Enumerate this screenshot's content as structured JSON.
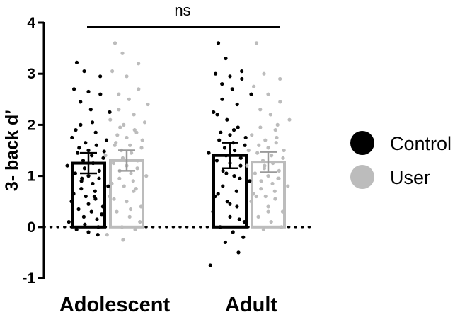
{
  "chart_data": {
    "type": "bar",
    "ylabel": "3- back d’",
    "ylim": [
      -1,
      4
    ],
    "yticks": [
      "-1",
      "0",
      "1",
      "2",
      "3",
      "4"
    ],
    "categories": [
      "Adolescent",
      "Adult"
    ],
    "reference_line": 0,
    "grid": false,
    "legend_position": "right",
    "series": [
      {
        "name": "Control",
        "color": "#000000",
        "values": [
          1.25,
          1.4
        ],
        "error": [
          0.2,
          0.25
        ],
        "points": [
          [
            3.22,
            3.05,
            2.95,
            2.7,
            2.65,
            2.6,
            2.45,
            2.3,
            2.25,
            2.0,
            1.85,
            1.75,
            1.65,
            1.6,
            1.55,
            1.5,
            1.48,
            1.45,
            1.4,
            1.35,
            1.3,
            1.25,
            1.2,
            1.15,
            1.1,
            1.05,
            1.0,
            0.95,
            0.9,
            0.85,
            0.8,
            0.75,
            0.7,
            0.65,
            0.6,
            0.55,
            0.5,
            0.45,
            0.4,
            0.35,
            0.3,
            0.25,
            0.2,
            0.15,
            0.1,
            0.05,
            0.0,
            -0.05,
            -0.1,
            -0.15,
            1.9,
            2.05,
            1.7,
            0.95,
            0.6
          ],
          [
            3.6,
            3.3,
            3.05,
            3.0,
            2.95,
            2.9,
            2.8,
            2.7,
            2.6,
            2.5,
            2.4,
            2.25,
            2.1,
            1.95,
            1.85,
            1.8,
            1.75,
            1.7,
            1.65,
            1.6,
            1.55,
            1.5,
            1.45,
            1.4,
            1.35,
            1.3,
            1.25,
            1.2,
            1.1,
            1.0,
            0.9,
            0.8,
            0.7,
            0.6,
            0.5,
            0.4,
            0.3,
            0.2,
            0.1,
            0.0,
            -0.1,
            -0.2,
            -0.3,
            -0.5,
            -0.75,
            1.05,
            0.95,
            0.65,
            0.45,
            0.15,
            2.2,
            1.9
          ]
        ]
      },
      {
        "name": "User",
        "color": "#bcbcbc",
        "values": [
          1.3,
          1.27
        ],
        "error": [
          0.2,
          0.2
        ],
        "points": [
          [
            3.6,
            3.4,
            3.2,
            3.05,
            2.95,
            2.7,
            2.6,
            2.5,
            2.4,
            2.3,
            2.2,
            2.1,
            2.0,
            1.9,
            1.8,
            1.75,
            1.7,
            1.65,
            1.6,
            1.55,
            1.5,
            1.45,
            1.4,
            1.35,
            1.3,
            1.25,
            1.2,
            1.15,
            1.1,
            1.05,
            1.0,
            0.95,
            0.9,
            0.85,
            0.8,
            0.7,
            0.6,
            0.5,
            0.4,
            0.3,
            0.2,
            0.1,
            0.0,
            -0.05,
            -0.15,
            -0.25,
            1.85,
            1.6,
            1.3,
            0.75,
            0.55,
            0.35,
            2.05,
            1.95
          ],
          [
            3.6,
            3.0,
            2.9,
            2.75,
            2.6,
            2.45,
            2.3,
            2.2,
            2.1,
            1.95,
            1.9,
            1.8,
            1.7,
            1.65,
            1.6,
            1.55,
            1.5,
            1.45,
            1.4,
            1.35,
            1.3,
            1.25,
            1.2,
            1.15,
            1.1,
            1.05,
            1.0,
            0.95,
            0.9,
            0.85,
            0.8,
            0.75,
            0.7,
            0.65,
            0.6,
            0.55,
            0.5,
            0.4,
            0.3,
            0.2,
            0.1,
            0.0,
            -0.05,
            1.75,
            1.5,
            1.2,
            0.95,
            0.6,
            0.3,
            2.0
          ]
        ]
      }
    ],
    "significance": {
      "label": "ns",
      "from": "Adolescent",
      "to": "Adult"
    }
  }
}
